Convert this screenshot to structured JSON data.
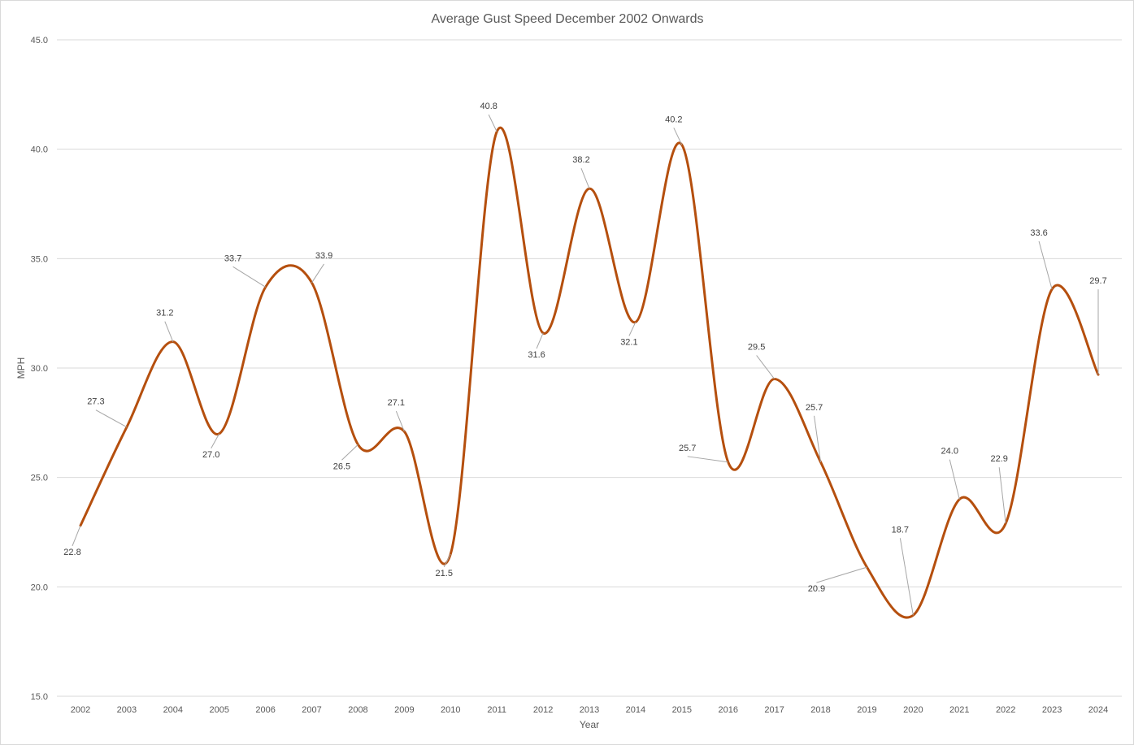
{
  "chart_data": {
    "type": "line",
    "title": "Average Gust Speed December 2002 Onwards",
    "xlabel": "Year",
    "ylabel": "MPH",
    "categories": [
      "2002",
      "2003",
      "2004",
      "2005",
      "2006",
      "2007",
      "2008",
      "2009",
      "2010",
      "2011",
      "2012",
      "2013",
      "2014",
      "2015",
      "2016",
      "2017",
      "2018",
      "2019",
      "2020",
      "2021",
      "2022",
      "2023",
      "2024"
    ],
    "series": [
      {
        "name": "",
        "color": "#b54f0e",
        "values": [
          22.8,
          27.3,
          31.2,
          27.0,
          33.7,
          33.9,
          26.5,
          27.1,
          21.5,
          40.8,
          31.6,
          38.2,
          32.1,
          40.2,
          25.7,
          29.5,
          25.7,
          20.9,
          18.7,
          24.0,
          22.9,
          33.6,
          29.7
        ]
      }
    ],
    "data_labels": [
      "22.8",
      "27.3",
      "31.2",
      "27.0",
      "33.7",
      "33.9",
      "26.5",
      "27.1",
      "21.5",
      "40.8",
      "31.6",
      "38.2",
      "32.1",
      "40.2",
      "25.7",
      "29.5",
      "25.7",
      "20.9",
      "18.7",
      "24.0",
      "22.9",
      "33.6",
      "29.7"
    ],
    "yticks": [
      "15.0",
      "20.0",
      "25.0",
      "30.0",
      "35.0",
      "40.0",
      "45.0"
    ],
    "ylim": [
      15,
      45
    ],
    "smooth": true,
    "grid": true,
    "legend": "none",
    "gridline_color": "#d9d9d9"
  }
}
